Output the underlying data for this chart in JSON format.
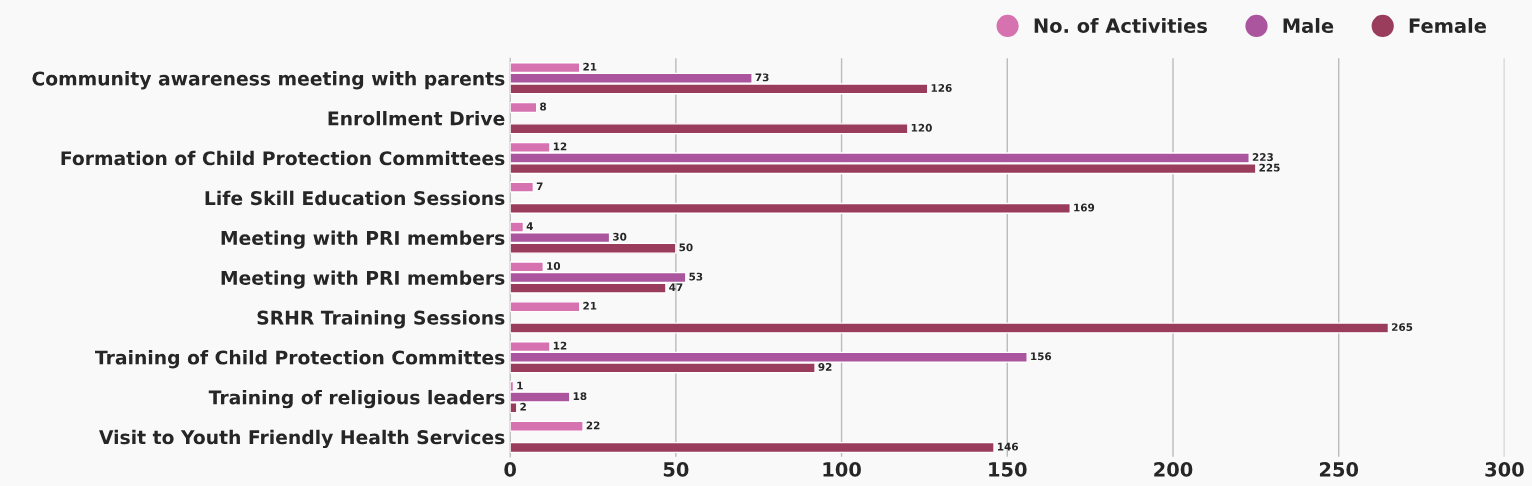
{
  "chart_data": {
    "type": "bar",
    "orientation": "horizontal",
    "categories": [
      "Community awareness meeting with parents",
      "Enrollment Drive",
      "Formation of Child Protection Committees",
      "Life Skill Education Sessions",
      "Meeting with PRI members",
      "Meeting with PRI members",
      "SRHR Training Sessions",
      "Training of Child Protection Committes",
      "Training of religious leaders",
      "Visit to Youth Friendly Health Services"
    ],
    "series": [
      {
        "name": "No. of Activities",
        "color": "#d672b0",
        "values": [
          21,
          8,
          12,
          7,
          4,
          10,
          21,
          12,
          1,
          22
        ]
      },
      {
        "name": "Male",
        "color": "#ab559e",
        "values": [
          73,
          null,
          223,
          null,
          30,
          53,
          null,
          156,
          18,
          null
        ]
      },
      {
        "name": "Female",
        "color": "#9a3d5c",
        "values": [
          126,
          120,
          225,
          169,
          50,
          47,
          265,
          92,
          2,
          146
        ]
      }
    ],
    "xlim": [
      0,
      300
    ],
    "xticks": [
      0,
      50,
      100,
      150,
      200,
      250,
      300
    ],
    "grid": "x",
    "legend": "top right",
    "data_labels": true
  }
}
